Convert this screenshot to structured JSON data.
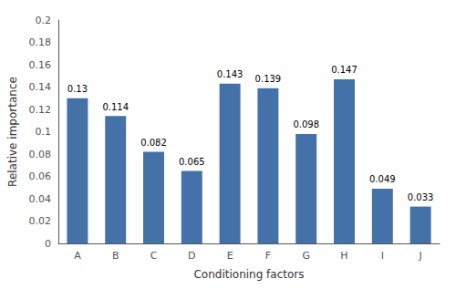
{
  "chart_data": {
    "type": "bar",
    "xlabel": "Conditioning factors",
    "ylabel": "Relative importance",
    "categories": [
      "A",
      "B",
      "C",
      "D",
      "E",
      "F",
      "G",
      "H",
      "I",
      "J"
    ],
    "values": [
      0.13,
      0.114,
      0.082,
      0.065,
      0.143,
      0.139,
      0.098,
      0.147,
      0.049,
      0.033
    ],
    "color": "#4472a8",
    "ylim": [
      0,
      0.2
    ],
    "yticks": [
      0,
      0.02,
      0.04,
      0.06,
      0.08,
      0.1,
      0.12,
      0.14,
      0.16,
      0.18,
      0.2
    ],
    "grid": false,
    "data_labels": true
  }
}
